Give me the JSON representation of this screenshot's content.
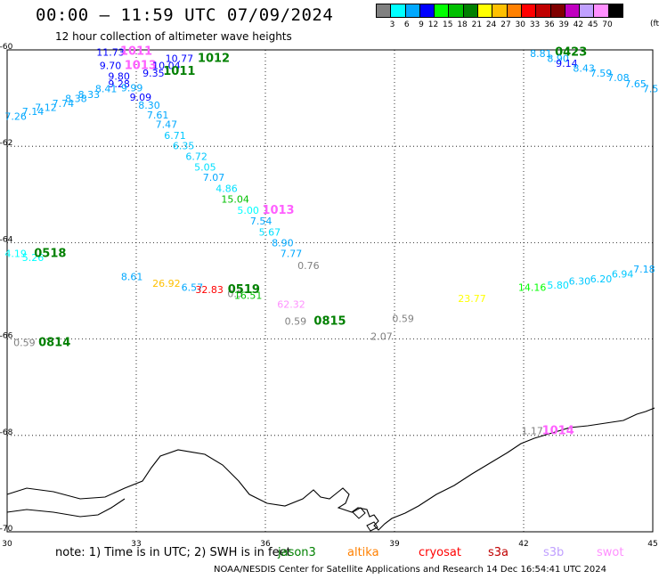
{
  "header": {
    "title": "00:00 – 11:59 UTC 07/09/2024",
    "subtitle": "12 hour collection of altimeter wave heights"
  },
  "colorbar": {
    "unit": "(ft)",
    "bins": [
      {
        "label": "3",
        "color": "#808080"
      },
      {
        "label": "6",
        "color": "#00ffff"
      },
      {
        "label": "9",
        "color": "#00a8ff"
      },
      {
        "label": "12",
        "color": "#0000ff"
      },
      {
        "label": "15",
        "color": "#00ff00"
      },
      {
        "label": "18",
        "color": "#00c000"
      },
      {
        "label": "21",
        "color": "#008000"
      },
      {
        "label": "24",
        "color": "#ffff00"
      },
      {
        "label": "27",
        "color": "#ffc000"
      },
      {
        "label": "30",
        "color": "#ff8000"
      },
      {
        "label": "33",
        "color": "#ff0000"
      },
      {
        "label": "36",
        "color": "#c00000"
      },
      {
        "label": "39",
        "color": "#800000"
      },
      {
        "label": "42",
        "color": "#c000c0"
      },
      {
        "label": "45",
        "color": "#c0a0ff"
      },
      {
        "label": "70",
        "color": "#ff90ff"
      },
      {
        "label": "",
        "color": "#000000"
      }
    ]
  },
  "axes": {
    "x_ticks": [
      "30",
      "33",
      "36",
      "39",
      "42",
      "45"
    ],
    "y_ticks": [
      "-60",
      "-62",
      "-64",
      "-66",
      "-68",
      "-70"
    ],
    "x_range": [
      30,
      45
    ],
    "y_range": [
      -60,
      -70
    ]
  },
  "observations": [
    {
      "text": "11.73",
      "lon": 32.4,
      "lat": -60.12,
      "color": "#0000ff"
    },
    {
      "text": "1011",
      "lon": 33.0,
      "lat": -60.1,
      "color": "#ff60ff"
    },
    {
      "text": "10.77",
      "lon": 34.0,
      "lat": -60.25,
      "color": "#0000ff"
    },
    {
      "text": "1012",
      "lon": 34.8,
      "lat": -60.25,
      "color": "#008000"
    },
    {
      "text": "9.70",
      "lon": 32.4,
      "lat": -60.4,
      "color": "#0000ff"
    },
    {
      "text": "1013",
      "lon": 33.1,
      "lat": -60.4,
      "color": "#ff60ff"
    },
    {
      "text": "10.04",
      "lon": 33.7,
      "lat": -60.4,
      "color": "#0000ff"
    },
    {
      "text": "1011",
      "lon": 34.0,
      "lat": -60.52,
      "color": "#008000"
    },
    {
      "text": "9.35",
      "lon": 33.4,
      "lat": -60.55,
      "color": "#0000ff"
    },
    {
      "text": "9.80",
      "lon": 32.6,
      "lat": -60.62,
      "color": "#0000ff"
    },
    {
      "text": "9.28",
      "lon": 32.6,
      "lat": -60.78,
      "color": "#0000ff"
    },
    {
      "text": "9.99",
      "lon": 32.9,
      "lat": -60.86,
      "color": "#00a8ff"
    },
    {
      "text": "8.41",
      "lon": 32.3,
      "lat": -60.88,
      "color": "#00a8ff"
    },
    {
      "text": "8.33",
      "lon": 31.9,
      "lat": -61.0,
      "color": "#00a8ff"
    },
    {
      "text": "8.38",
      "lon": 31.6,
      "lat": -61.08,
      "color": "#00a8ff"
    },
    {
      "text": "9.09",
      "lon": 33.1,
      "lat": -61.05,
      "color": "#0000ff"
    },
    {
      "text": "7.74",
      "lon": 31.3,
      "lat": -61.18,
      "color": "#00a8ff"
    },
    {
      "text": "7.12",
      "lon": 30.9,
      "lat": -61.27,
      "color": "#00a8ff"
    },
    {
      "text": "8.30",
      "lon": 33.3,
      "lat": -61.22,
      "color": "#00a8ff"
    },
    {
      "text": "7.14",
      "lon": 30.6,
      "lat": -61.35,
      "color": "#00a8ff"
    },
    {
      "text": "7.61",
      "lon": 33.5,
      "lat": -61.42,
      "color": "#00a8ff"
    },
    {
      "text": "7.26",
      "lon": 30.2,
      "lat": -61.45,
      "color": "#00a8ff"
    },
    {
      "text": "7.47",
      "lon": 33.7,
      "lat": -61.62,
      "color": "#00a8ff"
    },
    {
      "text": "6.71",
      "lon": 33.9,
      "lat": -61.85,
      "color": "#00c8ff"
    },
    {
      "text": "6.35",
      "lon": 34.1,
      "lat": -62.06,
      "color": "#00c8ff"
    },
    {
      "text": "6.72",
      "lon": 34.4,
      "lat": -62.28,
      "color": "#00c8ff"
    },
    {
      "text": "5.05",
      "lon": 34.6,
      "lat": -62.5,
      "color": "#00e0ff"
    },
    {
      "text": "7.07",
      "lon": 34.8,
      "lat": -62.72,
      "color": "#00a8ff"
    },
    {
      "text": "4.86",
      "lon": 35.1,
      "lat": -62.95,
      "color": "#00e0ff"
    },
    {
      "text": "15.04",
      "lon": 35.3,
      "lat": -63.17,
      "color": "#00c000"
    },
    {
      "text": "5.00",
      "lon": 35.6,
      "lat": -63.4,
      "color": "#00ffff"
    },
    {
      "text": "1013",
      "lon": 36.3,
      "lat": -63.4,
      "color": "#ff60ff"
    },
    {
      "text": "7.54",
      "lon": 35.9,
      "lat": -63.62,
      "color": "#00a8ff"
    },
    {
      "text": "5.67",
      "lon": 36.1,
      "lat": -63.85,
      "color": "#00e0ff"
    },
    {
      "text": "8.90",
      "lon": 36.4,
      "lat": -64.08,
      "color": "#00a8ff"
    },
    {
      "text": "7.77",
      "lon": 36.6,
      "lat": -64.3,
      "color": "#00a8ff"
    },
    {
      "text": "0.76",
      "lon": 37.0,
      "lat": -64.55,
      "color": "#808080"
    },
    {
      "text": "4.19",
      "lon": 30.2,
      "lat": -64.3,
      "color": "#00ffff"
    },
    {
      "text": "5.26",
      "lon": 30.6,
      "lat": -64.38,
      "color": "#00ffff"
    },
    {
      "text": "0518",
      "lon": 31.0,
      "lat": -64.3,
      "color": "#008000"
    },
    {
      "text": "8.61",
      "lon": 32.9,
      "lat": -64.78,
      "color": "#00a8ff"
    },
    {
      "text": "26.92",
      "lon": 33.7,
      "lat": -64.92,
      "color": "#ffc000"
    },
    {
      "text": "6.57",
      "lon": 34.3,
      "lat": -65.0,
      "color": "#00a8ff"
    },
    {
      "text": "32.83",
      "lon": 34.7,
      "lat": -65.05,
      "color": "#ff0000"
    },
    {
      "text": "0.5",
      "lon": 35.3,
      "lat": -65.13,
      "color": "#808080"
    },
    {
      "text": "16.51",
      "lon": 35.6,
      "lat": -65.17,
      "color": "#00c000"
    },
    {
      "text": "0519",
      "lon": 35.5,
      "lat": -65.05,
      "color": "#008000"
    },
    {
      "text": "62.32",
      "lon": 36.6,
      "lat": -65.35,
      "color": "#ff90ff"
    },
    {
      "text": "0.59",
      "lon": 36.7,
      "lat": -65.7,
      "color": "#808080"
    },
    {
      "text": "0815",
      "lon": 37.5,
      "lat": -65.7,
      "color": "#008000"
    },
    {
      "text": "0.59",
      "lon": 39.2,
      "lat": -65.65,
      "color": "#808080"
    },
    {
      "text": "2.07",
      "lon": 38.7,
      "lat": -66.02,
      "color": "#808080"
    },
    {
      "text": "23.77",
      "lon": 40.8,
      "lat": -65.23,
      "color": "#ffff00"
    },
    {
      "text": "0.59",
      "lon": 30.4,
      "lat": -66.15,
      "color": "#808080"
    },
    {
      "text": "0814",
      "lon": 31.1,
      "lat": -66.15,
      "color": "#008000"
    },
    {
      "text": "14.16",
      "lon": 42.2,
      "lat": -65.0,
      "color": "#00ff00"
    },
    {
      "text": "5.80",
      "lon": 42.8,
      "lat": -64.95,
      "color": "#00e0ff"
    },
    {
      "text": "6.30",
      "lon": 43.3,
      "lat": -64.87,
      "color": "#00c8ff"
    },
    {
      "text": "6.20",
      "lon": 43.8,
      "lat": -64.82,
      "color": "#00c8ff"
    },
    {
      "text": "6.94",
      "lon": 44.3,
      "lat": -64.72,
      "color": "#00c8ff"
    },
    {
      "text": "7.18",
      "lon": 44.8,
      "lat": -64.62,
      "color": "#00a8ff"
    },
    {
      "text": "8.81",
      "lon": 42.4,
      "lat": -60.15,
      "color": "#00a8ff"
    },
    {
      "text": "0423",
      "lon": 43.1,
      "lat": -60.12,
      "color": "#008000"
    },
    {
      "text": "8.90",
      "lon": 42.8,
      "lat": -60.25,
      "color": "#00a8ff"
    },
    {
      "text": "9.14",
      "lon": 43.0,
      "lat": -60.35,
      "color": "#0000ff"
    },
    {
      "text": "8.43",
      "lon": 43.4,
      "lat": -60.45,
      "color": "#00a8ff"
    },
    {
      "text": "7.59",
      "lon": 43.8,
      "lat": -60.55,
      "color": "#00a8ff"
    },
    {
      "text": "7.08",
      "lon": 44.2,
      "lat": -60.65,
      "color": "#00a8ff"
    },
    {
      "text": "7.65",
      "lon": 44.6,
      "lat": -60.78,
      "color": "#00a8ff"
    },
    {
      "text": "7.5",
      "lon": 44.95,
      "lat": -60.88,
      "color": "#00a8ff"
    },
    {
      "text": "1.17",
      "lon": 42.2,
      "lat": -67.98,
      "color": "#808080"
    },
    {
      "text": "1014",
      "lon": 42.8,
      "lat": -67.98,
      "color": "#ff60ff"
    }
  ],
  "footer": {
    "note": "note: 1) Time is in UTC; 2) SWH is in feet",
    "satellites": [
      {
        "name": "jason3",
        "color": "#008000"
      },
      {
        "name": "altika",
        "color": "#ff8000"
      },
      {
        "name": "cryosat",
        "color": "#ff0000"
      },
      {
        "name": "s3a",
        "color": "#c00000"
      },
      {
        "name": "s3b",
        "color": "#c0a0ff"
      },
      {
        "name": "swot",
        "color": "#ff90ff"
      }
    ],
    "credit": "NOAA/NESDIS Center for Satellite Applications and Research     14 Dec 16:54:41 UTC 2024"
  }
}
